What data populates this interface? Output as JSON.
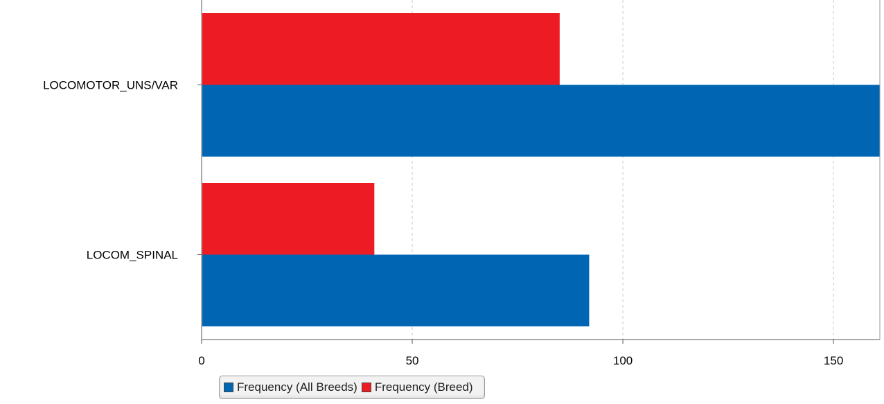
{
  "chart_data": {
    "type": "bar",
    "orientation": "horizontal",
    "categories": [
      "LOCOMOTOR_UNS/VAR",
      "LOCOM_SPINAL"
    ],
    "series": [
      {
        "name": "Frequency (Breed)",
        "color": "#ED1C24",
        "values": [
          85,
          41
        ]
      },
      {
        "name": "Frequency (All Breeds)",
        "color": "#0066B3",
        "values": [
          161,
          92
        ]
      }
    ],
    "xlim": [
      0,
      161
    ],
    "xticks": [
      0,
      50,
      100,
      150
    ],
    "grid": true,
    "legend_position": "bottom"
  },
  "legend": {
    "items": [
      {
        "label": "Frequency (All Breeds)",
        "color": "#0066B3"
      },
      {
        "label": "Frequency (Breed)",
        "color": "#ED1C24"
      }
    ]
  }
}
